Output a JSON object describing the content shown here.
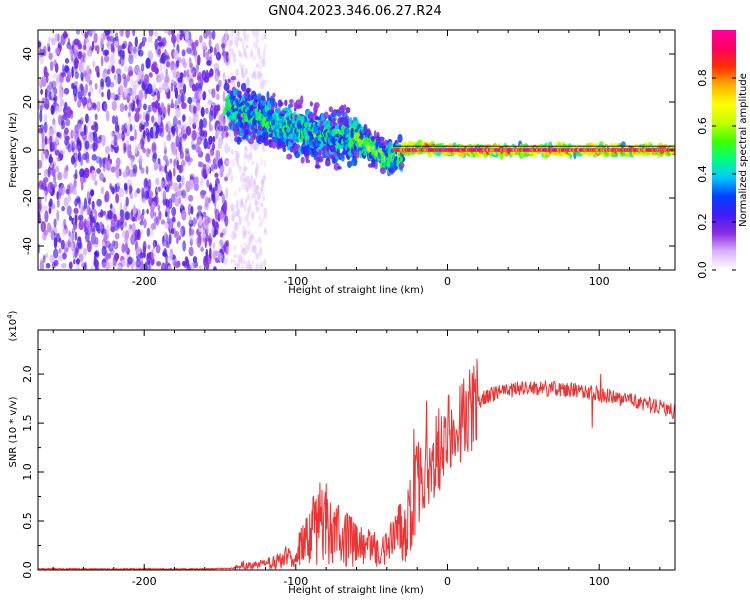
{
  "title": "GN04.2023.346.06.27.R24",
  "colors": {
    "signal_line": "#ee3333",
    "scatter_low": "#7b2cf0",
    "scatter_high": "#ff2a2a",
    "axis": "#000000"
  },
  "chart_data": [
    {
      "type": "heatmap",
      "xlabel": "Height of straight line (km)",
      "ylabel": "Frequency (Hz)",
      "xlim": [
        -270,
        150
      ],
      "ylim": [
        -50,
        50
      ],
      "xticks": [
        -200,
        -100,
        0,
        100
      ],
      "xtick_labels": [
        "-200",
        "-100",
        "0",
        "100"
      ],
      "yticks": [
        -40,
        -20,
        0,
        20,
        40
      ],
      "ytick_labels": [
        "-40",
        "-20",
        "0",
        "20",
        "40"
      ],
      "noise_region": {
        "x": [
          -270,
          -145
        ],
        "frequency": [
          -50,
          50
        ]
      },
      "weak_noise_region": {
        "x": [
          -145,
          -120
        ],
        "frequency": [
          -50,
          50
        ]
      },
      "signal_ridge": [
        {
          "x": -145,
          "frequency": 18
        },
        {
          "x": -130,
          "frequency": 15
        },
        {
          "x": -115,
          "frequency": 11
        },
        {
          "x": -100,
          "frequency": 8
        },
        {
          "x": -85,
          "frequency": 6
        },
        {
          "x": -70,
          "frequency": 5
        },
        {
          "x": -60,
          "frequency": 5
        },
        {
          "x": -50,
          "frequency": 1
        },
        {
          "x": -42,
          "frequency": -3
        },
        {
          "x": -35,
          "frequency": -3
        },
        {
          "x": -28,
          "frequency": 0
        },
        {
          "x": -15,
          "frequency": 1
        },
        {
          "x": 0,
          "frequency": 0
        },
        {
          "x": 150,
          "frequency": 0
        }
      ],
      "colorbar": {
        "label": "Normalized spectral amplitude",
        "range": [
          0,
          1
        ],
        "ticks": [
          0,
          0.2,
          0.4,
          0.6,
          0.8
        ],
        "tick_labels": [
          "0.0",
          "0.2",
          "0.4",
          "0.6",
          "0.8"
        ],
        "colors": [
          "#ffffff",
          "#d9b3ff",
          "#8a2be2",
          "#3f1cf5",
          "#0040ff",
          "#00c8ff",
          "#00ff7f",
          "#40ff00",
          "#c8ff00",
          "#ffff00",
          "#ffb000",
          "#ff3000",
          "#ff0060",
          "#ff00a0"
        ]
      }
    },
    {
      "type": "line",
      "xlabel": "Height of straight line (km)",
      "ylabel": "SNR (10 * v/v)",
      "y_multiplier_label": "(x10",
      "y_multiplier_exponent": "4",
      "y_multiplier_close": ")",
      "xlim": [
        -270,
        150
      ],
      "ylim": [
        0,
        2.45
      ],
      "xticks": [
        -200,
        -100,
        0,
        100
      ],
      "xtick_labels": [
        "-200",
        "-100",
        "0",
        "100"
      ],
      "yticks": [
        0.0,
        0.5,
        1.0,
        1.5,
        2.0
      ],
      "ytick_labels": [
        "0.0",
        "0.5",
        "1.0",
        "1.5",
        "2.0"
      ],
      "series": [
        {
          "x": [
            -270,
            -240,
            -200,
            -160,
            -140,
            -135,
            -130,
            -120,
            -110,
            -100,
            -95,
            -90,
            -85,
            -80,
            -75,
            -70,
            -65,
            -60,
            -55,
            -50,
            -45,
            -40,
            -35,
            -30,
            -25,
            -20,
            -15,
            -10,
            -5,
            0,
            10,
            20,
            30,
            40,
            50,
            60,
            70,
            80,
            90,
            100,
            105,
            110,
            120,
            130,
            140,
            150
          ],
          "y": [
            0.01,
            0.01,
            0.01,
            0.01,
            0.02,
            0.06,
            0.04,
            0.06,
            0.1,
            0.18,
            0.26,
            0.36,
            0.48,
            0.52,
            0.46,
            0.38,
            0.32,
            0.26,
            0.22,
            0.22,
            0.2,
            0.22,
            0.3,
            0.42,
            0.6,
            0.85,
            1.0,
            1.12,
            1.25,
            1.35,
            1.55,
            1.72,
            1.8,
            1.84,
            1.85,
            1.86,
            1.85,
            1.84,
            1.82,
            1.8,
            1.78,
            1.76,
            1.74,
            1.7,
            1.66,
            1.62
          ]
        }
      ]
    }
  ]
}
